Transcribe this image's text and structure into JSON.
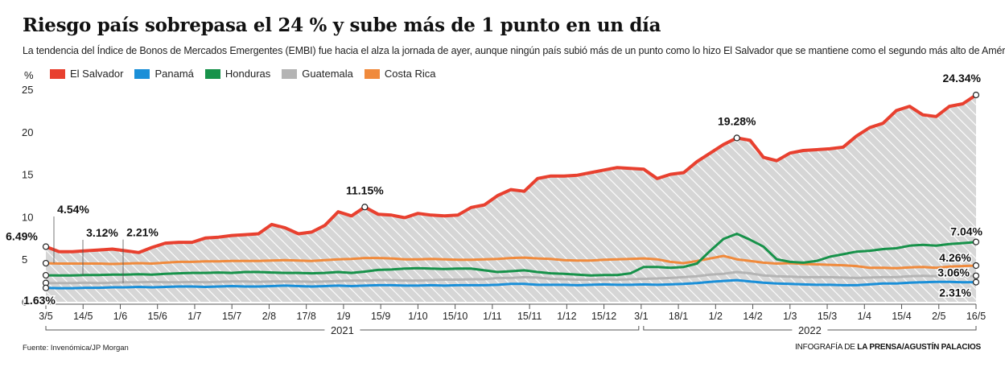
{
  "header": {
    "title": "Riesgo país sobrepasa el 24 % y sube más de 1 punto  en un día",
    "subtitle": "La tendencia del Índice de Bonos de Mercados Emergentes (EMBI) fue hacia el alza la jornada de ayer, aunque ningún país subió más de un punto como lo hizo El Salvador que se mantiene como el segundo más alto de América Latina."
  },
  "footer": {
    "source": "Fuente:  Invenómica/JP Morgan",
    "credit_prefix": "INFOGRAFÍA DE ",
    "credit": "LA PRENSA/AGUSTÍN PALACIOS"
  },
  "colors": {
    "el_salvador": "#e8402f",
    "panama": "#1a8fd8",
    "honduras": "#17924a",
    "guatemala": "#b4b4b4",
    "costa_rica": "#f08a3c",
    "area_fill": "#d9d9d9"
  },
  "chart_data": {
    "type": "line",
    "ylabel": "%",
    "ylim": [
      0,
      25
    ],
    "yticks": [
      "0",
      "5",
      "10",
      "15",
      "20",
      "25"
    ],
    "grid": false,
    "legend_position": "top-left",
    "x_tick_labels": [
      "3/5",
      "14/5",
      "1/6",
      "15/6",
      "1/7",
      "15/7",
      "2/8",
      "17/8",
      "1/9",
      "15/9",
      "1/10",
      "15/10",
      "1/11",
      "15/11",
      "1/12",
      "15/12",
      "3/1",
      "18/1",
      "1/2",
      "14/2",
      "1/3",
      "15/3",
      "1/4",
      "15/4",
      "2/5",
      "16/5"
    ],
    "year_labels": [
      "2021",
      "2022"
    ],
    "series": [
      {
        "name": "El Salvador",
        "color_key": "el_salvador",
        "values": [
          6.49,
          5.9,
          5.9,
          6.0,
          6.1,
          6.2,
          6.0,
          5.8,
          6.4,
          6.9,
          7.0,
          7.0,
          7.5,
          7.6,
          7.8,
          7.9,
          8.0,
          9.1,
          8.7,
          8.0,
          8.2,
          9.0,
          10.6,
          10.1,
          11.15,
          10.3,
          10.2,
          9.9,
          10.4,
          10.2,
          10.1,
          10.2,
          11.1,
          11.4,
          12.5,
          13.2,
          13.0,
          14.5,
          14.8,
          14.8,
          14.9,
          15.2,
          15.5,
          15.8,
          15.7,
          15.6,
          14.5,
          15.0,
          15.2,
          16.5,
          17.5,
          18.5,
          19.28,
          19.0,
          17.0,
          16.6,
          17.5,
          17.8,
          17.9,
          18.0,
          18.2,
          19.5,
          20.5,
          21.0,
          22.5,
          23.0,
          22.0,
          21.8,
          23.0,
          23.3,
          24.34
        ]
      },
      {
        "name": "Panamá",
        "color_key": "panama",
        "values": [
          1.63,
          1.6,
          1.6,
          1.65,
          1.65,
          1.7,
          1.7,
          1.75,
          1.7,
          1.75,
          1.8,
          1.8,
          1.75,
          1.8,
          1.85,
          1.8,
          1.8,
          1.85,
          1.9,
          1.85,
          1.8,
          1.85,
          1.9,
          1.85,
          1.9,
          1.95,
          1.95,
          1.9,
          1.9,
          1.95,
          1.9,
          1.95,
          1.95,
          1.95,
          2.0,
          2.1,
          2.1,
          2.0,
          2.0,
          2.0,
          1.95,
          2.0,
          2.05,
          2.0,
          2.0,
          2.05,
          2.0,
          2.05,
          2.1,
          2.2,
          2.35,
          2.45,
          2.55,
          2.4,
          2.25,
          2.15,
          2.1,
          2.05,
          2.0,
          2.0,
          1.95,
          1.95,
          2.05,
          2.15,
          2.15,
          2.25,
          2.3,
          2.35,
          2.35,
          2.3,
          2.31
        ]
      },
      {
        "name": "Honduras",
        "color_key": "honduras",
        "values": [
          3.12,
          3.1,
          3.1,
          3.15,
          3.15,
          3.2,
          3.2,
          3.25,
          3.2,
          3.3,
          3.35,
          3.4,
          3.4,
          3.45,
          3.4,
          3.5,
          3.5,
          3.45,
          3.4,
          3.4,
          3.35,
          3.4,
          3.5,
          3.4,
          3.55,
          3.75,
          3.8,
          3.9,
          3.95,
          3.9,
          3.85,
          3.9,
          3.9,
          3.7,
          3.5,
          3.6,
          3.7,
          3.5,
          3.35,
          3.3,
          3.2,
          3.1,
          3.15,
          3.15,
          3.35,
          4.1,
          4.1,
          4.0,
          4.1,
          4.5,
          6.0,
          7.4,
          8.0,
          7.3,
          6.5,
          5.0,
          4.7,
          4.6,
          4.8,
          5.3,
          5.6,
          5.9,
          6.0,
          6.2,
          6.3,
          6.6,
          6.7,
          6.6,
          6.8,
          6.9,
          7.04
        ]
      },
      {
        "name": "Guatemala",
        "color_key": "guatemala",
        "values": [
          2.21,
          2.2,
          2.2,
          2.25,
          2.2,
          2.25,
          2.3,
          2.3,
          2.35,
          2.3,
          2.3,
          2.35,
          2.3,
          2.35,
          2.4,
          2.4,
          2.35,
          2.4,
          2.4,
          2.4,
          2.35,
          2.4,
          2.45,
          2.5,
          2.5,
          2.55,
          2.55,
          2.5,
          2.5,
          2.55,
          2.6,
          2.6,
          2.65,
          2.65,
          2.8,
          2.8,
          2.9,
          2.85,
          2.7,
          2.65,
          2.6,
          2.6,
          2.65,
          2.6,
          2.65,
          2.7,
          2.75,
          2.8,
          2.9,
          3.0,
          3.2,
          3.3,
          3.5,
          3.35,
          3.1,
          3.0,
          2.95,
          2.9,
          2.9,
          2.9,
          2.85,
          2.8,
          2.85,
          2.9,
          2.9,
          3.0,
          3.05,
          3.0,
          3.1,
          3.0,
          3.06
        ]
      },
      {
        "name": "Costa Rica",
        "color_key": "costa_rica",
        "values": [
          4.54,
          4.5,
          4.5,
          4.5,
          4.5,
          4.45,
          4.5,
          4.55,
          4.5,
          4.6,
          4.7,
          4.7,
          4.75,
          4.75,
          4.8,
          4.8,
          4.8,
          4.85,
          4.9,
          4.85,
          4.8,
          4.9,
          5.0,
          5.05,
          5.15,
          5.15,
          5.1,
          5.0,
          5.0,
          5.05,
          5.0,
          4.95,
          4.95,
          5.0,
          5.05,
          5.15,
          5.2,
          5.1,
          5.05,
          4.9,
          4.85,
          4.85,
          4.95,
          5.0,
          5.05,
          5.1,
          5.0,
          4.7,
          4.55,
          4.8,
          5.1,
          5.4,
          5.0,
          4.8,
          4.6,
          4.5,
          4.55,
          4.45,
          4.4,
          4.35,
          4.3,
          4.2,
          4.0,
          4.0,
          3.95,
          4.05,
          4.1,
          4.0,
          4.15,
          4.2,
          4.26
        ]
      }
    ],
    "annotations": [
      {
        "label": "6.49%",
        "series": "El Salvador",
        "value": 6.49,
        "x_tick": "3/5"
      },
      {
        "label": "4.54%",
        "series": "Costa Rica",
        "value": 4.54,
        "x_tick": "3/5"
      },
      {
        "label": "3.12%",
        "series": "Honduras",
        "value": 3.12,
        "x_tick": "3/5"
      },
      {
        "label": "2.21%",
        "series": "Guatemala",
        "value": 2.21,
        "x_tick": "3/5"
      },
      {
        "label": "1.63%",
        "series": "Panamá",
        "value": 1.63,
        "x_tick": "3/5"
      },
      {
        "label": "11.15%",
        "series": "El Salvador",
        "value": 11.15,
        "x_tick": "1/10"
      },
      {
        "label": "19.28%",
        "series": "El Salvador",
        "value": 19.28,
        "x_tick": "1/3"
      },
      {
        "label": "24.34%",
        "series": "El Salvador",
        "value": 24.34,
        "x_tick": "16/5"
      },
      {
        "label": "7.04%",
        "series": "Honduras",
        "value": 7.04,
        "x_tick": "16/5"
      },
      {
        "label": "4.26%",
        "series": "Costa Rica",
        "value": 4.26,
        "x_tick": "16/5"
      },
      {
        "label": "3.06%",
        "series": "Guatemala",
        "value": 3.06,
        "x_tick": "16/5"
      },
      {
        "label": "2.31%",
        "series": "Panamá",
        "value": 2.31,
        "x_tick": "16/5"
      }
    ]
  }
}
